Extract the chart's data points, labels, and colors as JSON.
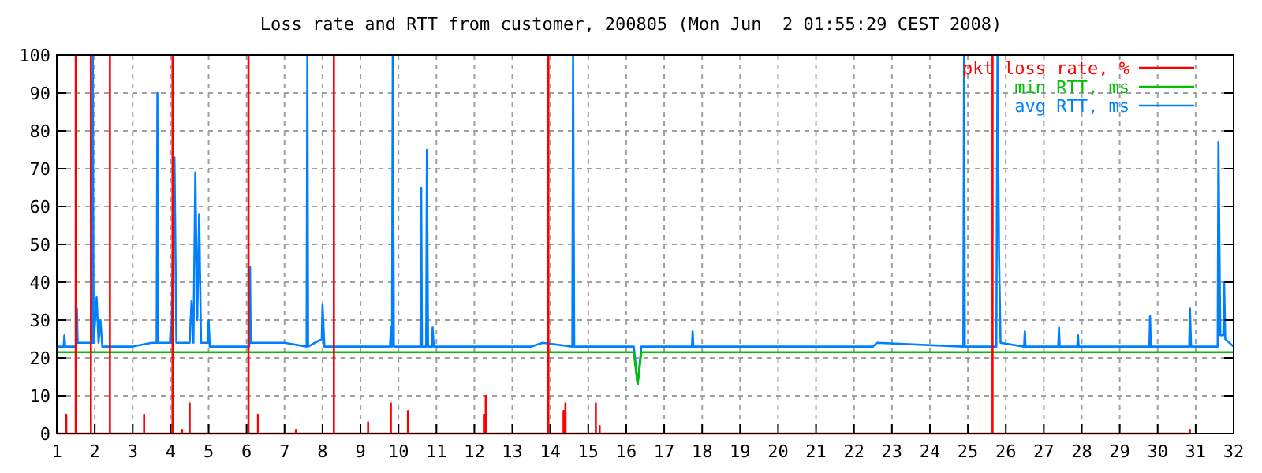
{
  "chart_data": {
    "type": "line",
    "title": "Loss rate and RTT from customer, 200805 (Mon Jun  2 01:55:29 CEST 2008)",
    "xlim": [
      1,
      32
    ],
    "xticks": [
      1,
      2,
      3,
      4,
      5,
      6,
      7,
      8,
      9,
      10,
      11,
      12,
      13,
      14,
      15,
      16,
      17,
      18,
      19,
      20,
      21,
      22,
      23,
      24,
      25,
      26,
      27,
      28,
      29,
      30,
      31,
      32
    ],
    "ylim": [
      0,
      100
    ],
    "yticks": [
      0,
      10,
      20,
      30,
      40,
      50,
      60,
      70,
      80,
      90,
      100
    ],
    "grid": true,
    "legend": "top right",
    "line_style": "solid",
    "series": [
      {
        "name": "avg RTT, ms",
        "color": "#0080ff",
        "x": [
          1.0,
          1.18,
          1.2,
          1.22,
          1.51,
          1.53,
          1.55,
          1.93,
          1.95,
          1.97,
          2.05,
          2.1,
          2.15,
          2.2,
          3.0,
          3.5,
          3.63,
          3.65,
          3.67,
          3.98,
          4.0,
          4.02,
          4.1,
          4.15,
          4.5,
          4.55,
          4.6,
          4.65,
          4.7,
          4.75,
          4.8,
          4.98,
          5.0,
          5.03,
          6.07,
          6.09,
          6.11,
          7.0,
          7.58,
          7.6,
          7.62,
          7.98,
          8.0,
          8.05,
          9.78,
          9.8,
          9.83,
          9.85,
          9.88,
          10.58,
          10.6,
          10.62,
          10.73,
          10.75,
          10.78,
          10.88,
          10.9,
          10.93,
          13.5,
          13.8,
          14.58,
          14.6,
          14.63,
          16.2,
          16.3,
          16.4,
          17.73,
          17.75,
          17.77,
          18.6,
          22.5,
          22.6,
          24.88,
          24.9,
          24.92,
          25.75,
          25.78,
          25.82,
          25.86,
          26.48,
          26.5,
          26.52,
          27.38,
          27.4,
          27.42,
          27.88,
          27.9,
          27.92,
          29.78,
          29.8,
          29.82,
          30.83,
          30.85,
          30.88,
          31.58,
          31.6,
          31.65,
          31.73,
          31.75,
          31.78,
          32
        ],
        "values": [
          23,
          23,
          26,
          23,
          23,
          33,
          24,
          24,
          100,
          24,
          36,
          24,
          30,
          23,
          23,
          24,
          24,
          90,
          24,
          24,
          28,
          24,
          73,
          24,
          24,
          35,
          24,
          69,
          30,
          58,
          24,
          24,
          30,
          23,
          23,
          44,
          24,
          24,
          23,
          100,
          23,
          25,
          34,
          23,
          23,
          28,
          23,
          100,
          23,
          23,
          65,
          23,
          23,
          75,
          23,
          23,
          28,
          23,
          23,
          24,
          23,
          100,
          23,
          23,
          13,
          23,
          23,
          27,
          23,
          23,
          23,
          24,
          23,
          100,
          23,
          23,
          100,
          48,
          24,
          23,
          27,
          23,
          23,
          28,
          23,
          23,
          26,
          23,
          23,
          31,
          23,
          23,
          33,
          23,
          23,
          77,
          26,
          26,
          40,
          25,
          23
        ]
      },
      {
        "name": "min RTT, ms",
        "color": "#00c000",
        "x": [
          1,
          16.2,
          16.3,
          16.4,
          32
        ],
        "values": [
          21.5,
          21.5,
          13,
          21.5,
          21.5
        ]
      },
      {
        "name": "pkt loss rate, %",
        "color": "#ff0000",
        "x": [
          1,
          1.25,
          1.25,
          1.25,
          1.5,
          1.5,
          1.5,
          1.9,
          1.9,
          1.9,
          2.4,
          2.4,
          2.4,
          3.3,
          3.3,
          3.3,
          4.05,
          4.05,
          4.05,
          4.3,
          4.3,
          4.3,
          4.5,
          4.5,
          4.5,
          6.05,
          6.05,
          6.05,
          6.3,
          6.3,
          6.3,
          7.3,
          7.3,
          7.3,
          8.3,
          8.3,
          8.3,
          9.2,
          9.2,
          9.2,
          9.8,
          9.8,
          9.8,
          10.25,
          10.25,
          10.25,
          12.25,
          12.25,
          12.25,
          12.3,
          12.3,
          12.3,
          13.95,
          13.95,
          13.95,
          14.35,
          14.35,
          14.35,
          14.4,
          14.4,
          14.4,
          15.2,
          15.2,
          15.2,
          15.3,
          15.3,
          15.3,
          25.65,
          25.65,
          25.65,
          30.85,
          30.85,
          30.85
        ],
        "values": [
          0,
          0,
          5,
          0,
          0,
          100,
          0,
          0,
          100,
          0,
          0,
          100,
          0,
          0,
          5,
          0,
          0,
          100,
          0,
          0,
          1,
          0,
          0,
          8,
          0,
          0,
          100,
          0,
          0,
          5,
          0,
          0,
          1,
          0,
          0,
          100,
          0,
          0,
          3,
          0,
          0,
          8,
          0,
          0,
          6,
          0,
          0,
          5,
          0,
          0,
          10,
          0,
          0,
          100,
          0,
          0,
          6,
          0,
          0,
          8,
          0,
          0,
          8,
          0,
          0,
          2,
          0,
          0,
          100,
          0,
          0,
          1,
          0
        ]
      }
    ]
  }
}
